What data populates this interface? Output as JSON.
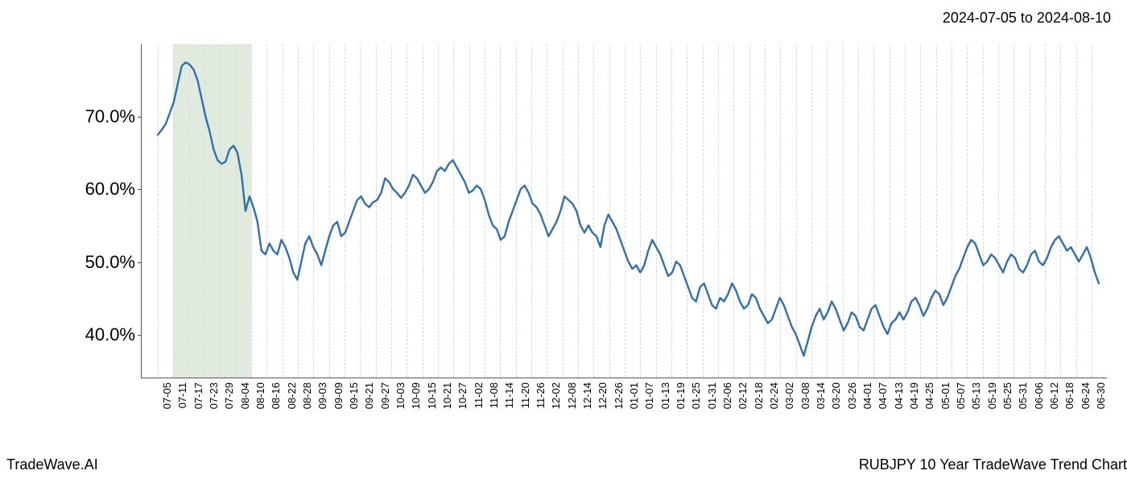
{
  "date_range": "2024-07-05 to 2024-08-10",
  "footer_left": "TradeWave.AI",
  "footer_right": "RUBJPY 10 Year TradeWave Trend Chart",
  "chart": {
    "type": "line",
    "background_color": "#ffffff",
    "line_color": "#2f6fb3",
    "line_width": 2.4,
    "grid_color": "#d6d6d6",
    "axis_color": "#555555",
    "highlight_color": "#cfe0cb",
    "highlight_opacity": 0.65,
    "highlight_start_index": 1,
    "highlight_end_index": 6,
    "ylim": [
      34,
      80
    ],
    "yticks": [
      40,
      50,
      60,
      70
    ],
    "ytick_labels": [
      "40.0%",
      "50.0%",
      "60.0%",
      "70.0%"
    ],
    "ylabel_fontsize": 22,
    "x_labels": [
      "07-05",
      "07-11",
      "07-17",
      "07-23",
      "07-29",
      "08-04",
      "08-10",
      "08-16",
      "08-22",
      "08-28",
      "09-03",
      "09-09",
      "09-15",
      "09-21",
      "09-27",
      "10-03",
      "10-09",
      "10-15",
      "10-21",
      "10-27",
      "11-02",
      "11-08",
      "11-14",
      "11-20",
      "11-26",
      "12-02",
      "12-08",
      "12-14",
      "12-20",
      "12-26",
      "01-01",
      "01-07",
      "01-13",
      "01-19",
      "01-25",
      "01-31",
      "02-06",
      "02-12",
      "02-18",
      "02-24",
      "03-02",
      "03-08",
      "03-14",
      "03-20",
      "03-26",
      "04-01",
      "04-07",
      "04-13",
      "04-19",
      "04-25",
      "05-01",
      "05-07",
      "05-13",
      "05-19",
      "05-25",
      "05-31",
      "06-06",
      "06-12",
      "06-18",
      "06-24",
      "06-30"
    ],
    "xlabel_fontsize": 13,
    "values": [
      67.5,
      68.2,
      69.0,
      70.5,
      72.0,
      74.5,
      77.0,
      77.5,
      77.2,
      76.5,
      75.0,
      72.5,
      70.0,
      68.0,
      65.5,
      64.0,
      63.5,
      63.8,
      65.5,
      66.0,
      65.0,
      62.0,
      57.0,
      59.0,
      57.5,
      55.5,
      51.5,
      51.0,
      52.5,
      51.5,
      51.0,
      53.0,
      52.0,
      50.5,
      48.5,
      47.5,
      50.0,
      52.5,
      53.5,
      52.0,
      51.0,
      49.5,
      51.5,
      53.5,
      55.0,
      55.5,
      53.5,
      54.0,
      55.5,
      57.0,
      58.5,
      59.0,
      58.0,
      57.5,
      58.2,
      58.5,
      59.5,
      61.5,
      61.0,
      60.0,
      59.5,
      58.8,
      59.5,
      60.5,
      62.0,
      61.5,
      60.5,
      59.5,
      60.0,
      61.0,
      62.5,
      63.0,
      62.5,
      63.5,
      64.0,
      63.0,
      62.0,
      61.0,
      59.5,
      59.8,
      60.5,
      60.0,
      58.5,
      56.5,
      55.0,
      54.5,
      53.0,
      53.5,
      55.5,
      57.0,
      58.5,
      60.0,
      60.5,
      59.5,
      58.0,
      57.5,
      56.5,
      55.0,
      53.5,
      54.5,
      55.5,
      57.0,
      59.0,
      58.5,
      58.0,
      57.0,
      55.0,
      54.0,
      55.0,
      54.0,
      53.5,
      52.0,
      55.0,
      56.5,
      55.5,
      54.5,
      53.0,
      51.5,
      50.0,
      49.0,
      49.5,
      48.5,
      49.5,
      51.5,
      53.0,
      52.0,
      51.0,
      49.5,
      48.0,
      48.5,
      50.0,
      49.5,
      48.0,
      46.5,
      45.0,
      44.5,
      46.5,
      47.0,
      45.5,
      44.0,
      43.5,
      45.0,
      44.5,
      45.5,
      47.0,
      46.0,
      44.5,
      43.5,
      44.0,
      45.5,
      45.0,
      43.5,
      42.5,
      41.5,
      42.0,
      43.5,
      45.0,
      44.0,
      42.5,
      41.0,
      40.0,
      38.5,
      37.0,
      39.0,
      41.0,
      42.5,
      43.5,
      42.0,
      43.0,
      44.5,
      43.5,
      42.0,
      40.5,
      41.5,
      43.0,
      42.5,
      41.0,
      40.5,
      42.0,
      43.5,
      44.0,
      42.5,
      41.0,
      40.0,
      41.5,
      42.0,
      43.0,
      42.0,
      43.0,
      44.5,
      45.0,
      44.0,
      42.5,
      43.5,
      45.0,
      46.0,
      45.5,
      44.0,
      45.0,
      46.5,
      48.0,
      49.0,
      50.5,
      52.0,
      53.0,
      52.5,
      51.0,
      49.5,
      50.0,
      51.0,
      50.5,
      49.5,
      48.5,
      50.0,
      51.0,
      50.5,
      49.0,
      48.5,
      49.5,
      51.0,
      51.5,
      50.0,
      49.5,
      50.5,
      52.0,
      53.0,
      53.5,
      52.5,
      51.5,
      52.0,
      51.0,
      50.0,
      51.0,
      52.0,
      50.5,
      48.5,
      47.0
    ]
  }
}
